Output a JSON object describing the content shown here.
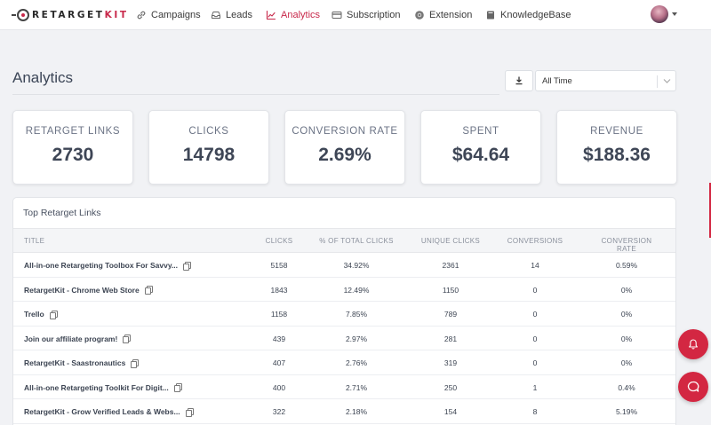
{
  "nav": {
    "logo_prefix": "RETARGET",
    "logo_suffix": "KIT",
    "items": [
      {
        "label": "Campaigns",
        "icon": "link-icon"
      },
      {
        "label": "Leads",
        "icon": "inbox-icon"
      },
      {
        "label": "Analytics",
        "icon": "chart-icon",
        "active": true
      },
      {
        "label": "Subscription",
        "icon": "card-icon"
      },
      {
        "label": "Extension",
        "icon": "chrome-icon"
      },
      {
        "label": "KnowledgeBase",
        "icon": "book-icon"
      }
    ]
  },
  "header": {
    "title": "Analytics",
    "range_select": "All Time"
  },
  "stats": [
    {
      "label": "RETARGET LINKS",
      "value": "2730"
    },
    {
      "label": "CLICKS",
      "value": "14798"
    },
    {
      "label": "CONVERSION RATE",
      "value": "2.69%"
    },
    {
      "label": "SPENT",
      "value": "$64.64"
    },
    {
      "label": "REVENUE",
      "value": "$188.36"
    }
  ],
  "table": {
    "title": "Top Retarget Links",
    "columns": [
      "TITLE",
      "CLICKS",
      "% OF TOTAL CLICKS",
      "UNIQUE CLICKS",
      "CONVERSIONS",
      "CONVERSION RATE"
    ],
    "rows": [
      [
        "All-in-one Retargeting Toolbox For Savvy...",
        "5158",
        "34.92%",
        "2361",
        "14",
        "0.59%"
      ],
      [
        "RetargetKit - Chrome Web Store",
        "1843",
        "12.49%",
        "1150",
        "0",
        "0%"
      ],
      [
        "Trello",
        "1158",
        "7.85%",
        "789",
        "0",
        "0%"
      ],
      [
        "Join our affiliate program!",
        "439",
        "2.97%",
        "281",
        "0",
        "0%"
      ],
      [
        "RetargetKit - Saastronautics",
        "407",
        "2.76%",
        "319",
        "0",
        "0%"
      ],
      [
        "All-in-one Retargeting Toolkit For Digit...",
        "400",
        "2.71%",
        "250",
        "1",
        "0.4%"
      ],
      [
        "RetargetKit - Grow Verified Leads & Webs...",
        "322",
        "2.18%",
        "154",
        "8",
        "5.19%"
      ]
    ]
  },
  "colors": {
    "accent": "#c8284a",
    "fab": "#d32742"
  }
}
